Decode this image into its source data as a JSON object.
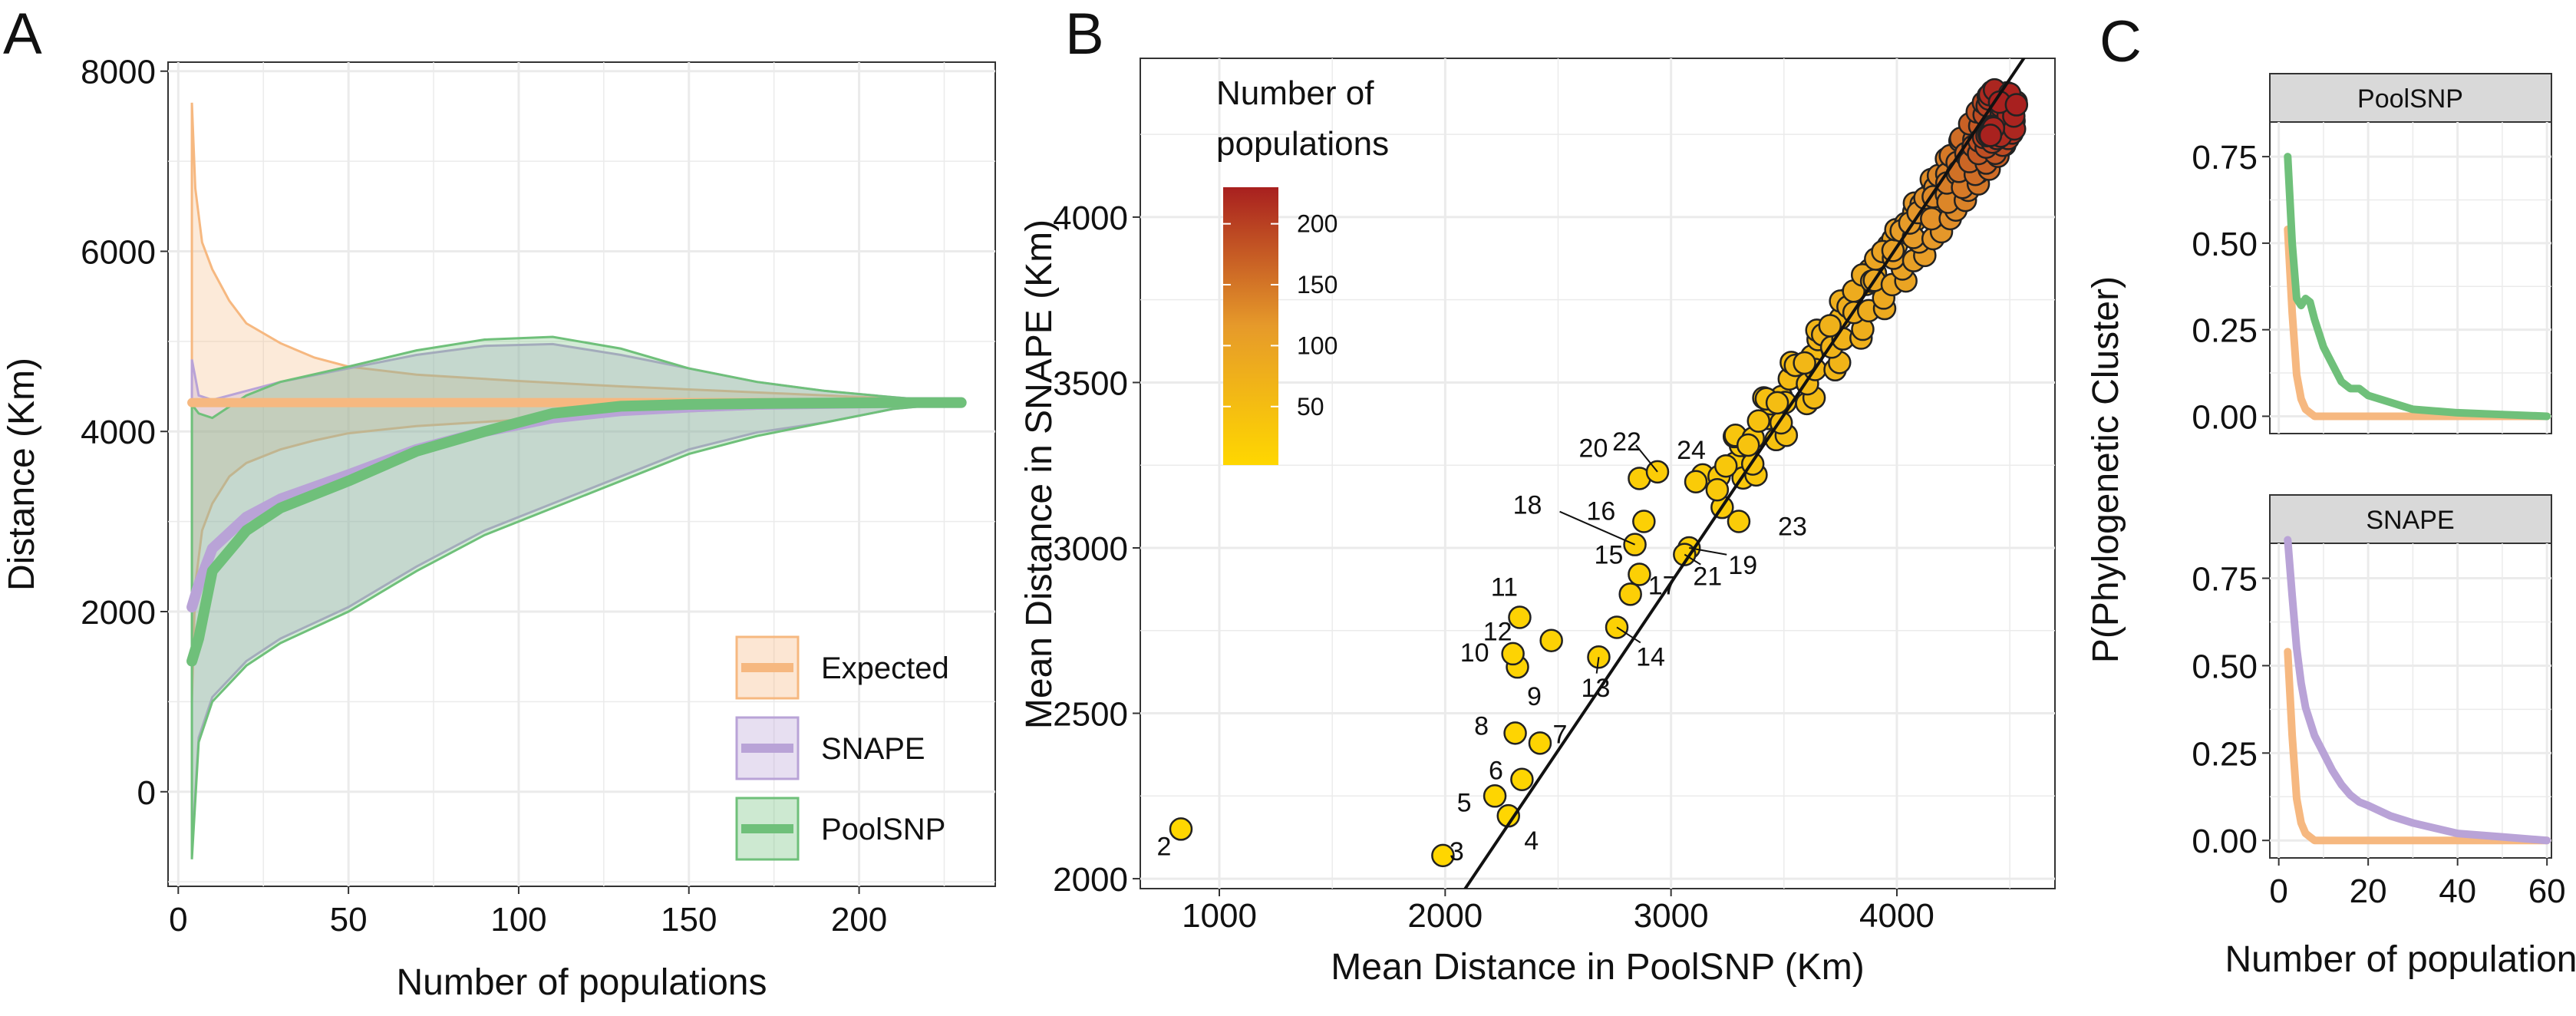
{
  "chart_data": [
    {
      "panel": "A",
      "type": "area",
      "xlabel": "Number of populations",
      "ylabel": "Distance (Km)",
      "xlim": [
        -3,
        240
      ],
      "ylim": [
        -1050,
        8100
      ],
      "xticks": [
        0,
        50,
        100,
        150,
        200
      ],
      "yticks": [
        0,
        2000,
        4000,
        6000,
        8000
      ],
      "grid": true,
      "legend_position": "bottom-right",
      "colors": {
        "Expected": "#F6B880",
        "SNAPE": "#B9A3D7",
        "PoolSNP": "#6FC07A"
      },
      "series": [
        {
          "name": "Expected",
          "x": [
            4,
            5,
            7,
            10,
            15,
            20,
            30,
            40,
            50,
            70,
            100,
            130,
            160,
            190,
            220,
            230
          ],
          "mean": [
            4320,
            4320,
            4320,
            4320,
            4320,
            4320,
            4320,
            4320,
            4320,
            4320,
            4320,
            4320,
            4320,
            4320,
            4320,
            4320
          ],
          "upper": [
            7650,
            6700,
            6100,
            5800,
            5450,
            5200,
            4980,
            4820,
            4720,
            4630,
            4560,
            4500,
            4450,
            4400,
            4350,
            4320
          ],
          "lower": [
            1000,
            2300,
            2900,
            3200,
            3500,
            3650,
            3800,
            3900,
            3980,
            4060,
            4130,
            4190,
            4240,
            4280,
            4310,
            4320
          ]
        },
        {
          "name": "SNAPE",
          "x": [
            4,
            6,
            10,
            20,
            30,
            50,
            70,
            90,
            110,
            130,
            150,
            170,
            190,
            210,
            230
          ],
          "mean": [
            2050,
            2300,
            2700,
            3050,
            3250,
            3520,
            3800,
            4000,
            4150,
            4230,
            4270,
            4300,
            4310,
            4320,
            4320
          ],
          "upper": [
            4800,
            4400,
            4350,
            4450,
            4550,
            4700,
            4850,
            4950,
            4970,
            4850,
            4700,
            4550,
            4450,
            4380,
            4320
          ],
          "lower": [
            -650,
            600,
            1050,
            1450,
            1700,
            2050,
            2500,
            2900,
            3200,
            3500,
            3800,
            3990,
            4100,
            4250,
            4320
          ]
        },
        {
          "name": "PoolSNP",
          "x": [
            4,
            6,
            10,
            20,
            30,
            50,
            70,
            90,
            110,
            130,
            150,
            170,
            190,
            210,
            230
          ],
          "mean": [
            1450,
            1700,
            2450,
            2900,
            3150,
            3450,
            3780,
            4000,
            4200,
            4280,
            4300,
            4310,
            4315,
            4320,
            4320
          ],
          "upper": [
            4300,
            4200,
            4150,
            4400,
            4550,
            4720,
            4900,
            5020,
            5050,
            4920,
            4700,
            4550,
            4450,
            4380,
            4320
          ],
          "lower": [
            -750,
            550,
            1000,
            1400,
            1650,
            2000,
            2450,
            2850,
            3150,
            3450,
            3750,
            3950,
            4100,
            4250,
            4320
          ]
        }
      ]
    },
    {
      "panel": "B",
      "type": "scatter",
      "xlabel": "Mean Distance in PoolSNP (Km)",
      "ylabel": "Mean Distance in SNAPE (Km)",
      "xlim": [
        650,
        4700
      ],
      "ylim": [
        1970,
        4480
      ],
      "xticks": [
        1000,
        2000,
        3000,
        4000
      ],
      "yticks": [
        2000,
        2500,
        3000,
        3500,
        4000
      ],
      "grid": true,
      "fit_line": {
        "x": [
          2000,
          4700
        ],
        "y": [
          1880,
          4620
        ]
      },
      "colorbar": {
        "title": "Number of populations",
        "ticks": [
          50,
          100,
          150,
          200
        ],
        "min": 2,
        "max": 230,
        "low_color": "#FFD700",
        "mid_color": "#E69A2A",
        "high_color": "#A8201F"
      },
      "labeled_points": [
        {
          "n": 2,
          "x": 830,
          "y": 2150
        },
        {
          "n": 3,
          "x": 1990,
          "y": 2070
        },
        {
          "n": 4,
          "x": 2280,
          "y": 2190
        },
        {
          "n": 5,
          "x": 2220,
          "y": 2250
        },
        {
          "n": 6,
          "x": 2340,
          "y": 2300
        },
        {
          "n": 7,
          "x": 2420,
          "y": 2410
        },
        {
          "n": 8,
          "x": 2310,
          "y": 2440
        },
        {
          "n": 9,
          "x": 2320,
          "y": 2640
        },
        {
          "n": 10,
          "x": 2300,
          "y": 2680
        },
        {
          "n": 11,
          "x": 2330,
          "y": 2790
        },
        {
          "n": 12,
          "x": 2470,
          "y": 2720
        },
        {
          "n": 13,
          "x": 2680,
          "y": 2670
        },
        {
          "n": 14,
          "x": 2760,
          "y": 2760
        },
        {
          "n": 15,
          "x": 2860,
          "y": 2920
        },
        {
          "n": 16,
          "x": 2880,
          "y": 3080
        },
        {
          "n": 17,
          "x": 2820,
          "y": 2860
        },
        {
          "n": 18,
          "x": 2840,
          "y": 3010
        },
        {
          "n": 19,
          "x": 3080,
          "y": 3000
        },
        {
          "n": 20,
          "x": 2860,
          "y": 3210
        },
        {
          "n": 21,
          "x": 3060,
          "y": 2980
        },
        {
          "n": 22,
          "x": 2940,
          "y": 3230
        },
        {
          "n": 23,
          "x": 3300,
          "y": 3080
        },
        {
          "n": 24,
          "x": 3110,
          "y": 3200
        }
      ]
    },
    {
      "panel": "C",
      "type": "line",
      "xlabel": "Number of populations",
      "ylabel": "P(Phylogenetic Cluster)",
      "xlim": [
        -2,
        61
      ],
      "ylim": [
        -0.05,
        0.85
      ],
      "xticks": [
        0,
        20,
        40,
        60
      ],
      "yticks": [
        0.0,
        0.25,
        0.5,
        0.75
      ],
      "ytick_labels": [
        "0.00",
        "0.25",
        "0.50",
        "0.75"
      ],
      "grid": true,
      "facets": [
        {
          "strip": "PoolSNP",
          "series": [
            {
              "color": "#6FC07A",
              "x": [
                2,
                3,
                4,
                5,
                6,
                7,
                8,
                9,
                10,
                12,
                14,
                16,
                18,
                20,
                25,
                30,
                40,
                50,
                60
              ],
              "y": [
                0.75,
                0.5,
                0.34,
                0.32,
                0.34,
                0.33,
                0.28,
                0.24,
                0.2,
                0.15,
                0.1,
                0.08,
                0.08,
                0.06,
                0.04,
                0.02,
                0.01,
                0.005,
                0.0
              ]
            },
            {
              "color": "#F6B880",
              "x": [
                2,
                3,
                4,
                5,
                6,
                7,
                8,
                10,
                15,
                20,
                30,
                40,
                50,
                60
              ],
              "y": [
                0.54,
                0.3,
                0.12,
                0.05,
                0.02,
                0.01,
                0.0,
                0.0,
                0.0,
                0.0,
                0.0,
                0.0,
                0.0,
                0.0
              ]
            }
          ]
        },
        {
          "strip": "SNAPE",
          "series": [
            {
              "color": "#B9A3D7",
              "x": [
                2,
                3,
                4,
                5,
                6,
                7,
                8,
                10,
                12,
                14,
                16,
                18,
                20,
                25,
                30,
                40,
                50,
                60
              ],
              "y": [
                0.86,
                0.7,
                0.55,
                0.45,
                0.38,
                0.34,
                0.3,
                0.25,
                0.2,
                0.16,
                0.13,
                0.11,
                0.1,
                0.07,
                0.05,
                0.02,
                0.01,
                0.0
              ]
            },
            {
              "color": "#F6B880",
              "x": [
                2,
                3,
                4,
                5,
                6,
                7,
                8,
                10,
                15,
                20,
                30,
                40,
                50,
                60
              ],
              "y": [
                0.54,
                0.3,
                0.12,
                0.05,
                0.02,
                0.01,
                0.0,
                0.0,
                0.0,
                0.0,
                0.0,
                0.0,
                0.0,
                0.0
              ]
            }
          ]
        }
      ]
    }
  ],
  "panels": {
    "a": "A",
    "b": "B",
    "c": "C"
  },
  "legendA": {
    "expected": "Expected",
    "snape": "SNAPE",
    "poolsnp": "PoolSNP"
  },
  "stripsC": {
    "top": "PoolSNP",
    "bottom": "SNAPE"
  },
  "colorbarB": {
    "title_line1": "Number of",
    "title_line2": "populations"
  }
}
